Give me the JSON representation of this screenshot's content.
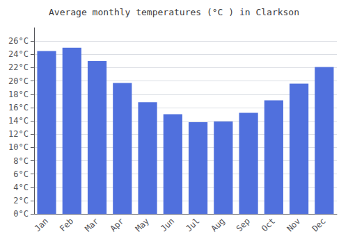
{
  "chart_data": {
    "type": "bar",
    "title": "Average monthly temperatures (°C ) in Clarkson",
    "categories": [
      "Jan",
      "Feb",
      "Mar",
      "Apr",
      "May",
      "Jun",
      "Jul",
      "Aug",
      "Sep",
      "Oct",
      "Nov",
      "Dec"
    ],
    "values": [
      24.5,
      25.0,
      23.0,
      19.7,
      16.8,
      15.0,
      13.8,
      13.9,
      15.2,
      17.1,
      19.6,
      22.1
    ],
    "ylim": [
      0,
      28
    ],
    "yticks": [
      {
        "value": 0,
        "label": "0°C"
      },
      {
        "value": 2,
        "label": "2°C"
      },
      {
        "value": 4,
        "label": "4°C"
      },
      {
        "value": 6,
        "label": "6°C"
      },
      {
        "value": 8,
        "label": "8°C"
      },
      {
        "value": 10,
        "label": "10°C"
      },
      {
        "value": 12,
        "label": "12°C"
      },
      {
        "value": 14,
        "label": "14°C"
      },
      {
        "value": 16,
        "label": "16°C"
      },
      {
        "value": 18,
        "label": "18°C"
      },
      {
        "value": 20,
        "label": "20°C"
      },
      {
        "value": 22,
        "label": "22°C"
      },
      {
        "value": 24,
        "label": "24°C"
      },
      {
        "value": 26,
        "label": "26°C"
      }
    ],
    "grid": true
  }
}
